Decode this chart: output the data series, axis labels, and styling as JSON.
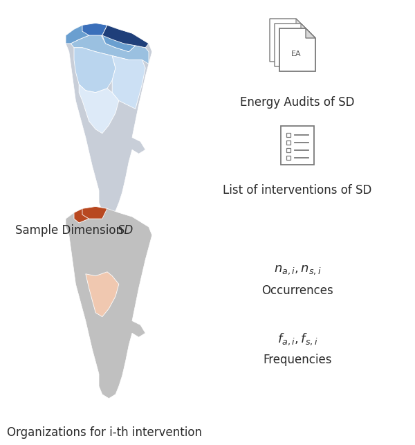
{
  "bg_color": "#ffffff",
  "fig_width": 6.0,
  "fig_height": 6.43,
  "bottom_label": "Organizations for i-th intervention",
  "ea_label": "Energy Audits of SD",
  "list_label": "List of interventions of SD",
  "occ_label": "Occurrences",
  "freq_label": "Frequencies",
  "icon_color": "#7a7a7a",
  "text_color": "#2a2a2a",
  "blue_dark": "#1f3f7a",
  "blue_mid": "#3a6fba",
  "blue_light1": "#6a9fd0",
  "blue_light2": "#9ac0e0",
  "blue_light3": "#bad5ee",
  "blue_light4": "#cce0f4",
  "blue_vlight": "#ddeaf8",
  "orange_dark": "#b84820",
  "orange_light": "#f0c8b0",
  "map_gray_top": "#c8ced8",
  "map_gray_bot": "#c0c0c0"
}
